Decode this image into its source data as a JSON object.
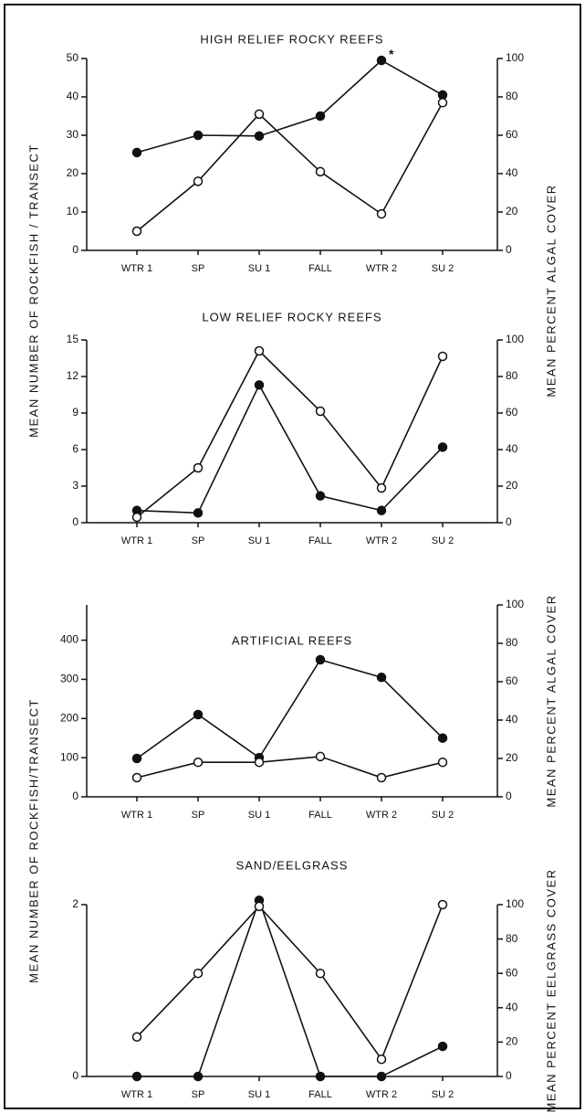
{
  "chart_data": [
    {
      "type": "line",
      "title": "HIGH RELIEF ROCKY REEFS",
      "categories": [
        "WTR 1",
        "SP",
        "SU 1",
        "FALL",
        "WTR 2",
        "SU 2"
      ],
      "ylim": [
        0,
        50
      ],
      "yticks": [
        0,
        10,
        20,
        30,
        40,
        50
      ],
      "y2lim": [
        0,
        100
      ],
      "y2ticks": [
        0,
        20,
        40,
        60,
        80,
        100
      ],
      "ylabel": "MEAN NUMBER OF ROCKFISH / TRANSECT",
      "y2label": "MEAN PERCENT ALGAL COVER",
      "series": [
        {
          "color": "#111111",
          "marker": "filled",
          "values": [
            25.5,
            30,
            29.8,
            35,
            49.5,
            40.5
          ]
        },
        {
          "color": "#111111",
          "marker": "open",
          "axis": "y2",
          "values": [
            10,
            36,
            71,
            41,
            19,
            77
          ]
        }
      ],
      "annotations": [
        {
          "text": "*",
          "series": 0,
          "index": 4
        }
      ]
    },
    {
      "type": "line",
      "title": "LOW RELIEF ROCKY REEFS",
      "categories": [
        "WTR 1",
        "SP",
        "SU 1",
        "FALL",
        "WTR 2",
        "SU 2"
      ],
      "ylim": [
        0,
        15
      ],
      "yticks": [
        0,
        3,
        6,
        9,
        12,
        15
      ],
      "y2lim": [
        0,
        100
      ],
      "y2ticks": [
        0,
        20,
        40,
        60,
        80,
        100
      ],
      "series": [
        {
          "color": "#111111",
          "marker": "filled",
          "values": [
            1.0,
            0.8,
            11.3,
            2.2,
            1.0,
            6.2
          ]
        },
        {
          "color": "#111111",
          "marker": "open",
          "axis": "y2",
          "values": [
            3,
            30,
            94,
            61,
            19,
            91
          ]
        }
      ]
    },
    {
      "type": "line",
      "title": "ARTIFICIAL REEFS",
      "categories": [
        "WTR 1",
        "SP",
        "SU 1",
        "FALL",
        "WTR 2",
        "SU 2"
      ],
      "ylim": [
        0,
        490
      ],
      "yticks": [
        0,
        100,
        200,
        300,
        400
      ],
      "y2lim": [
        0,
        100
      ],
      "y2ticks": [
        0,
        20,
        40,
        60,
        80,
        100
      ],
      "ylabel": "MEAN NUMBER OF ROCKFISH/TRANSECT",
      "y2label": "MEAN PERCENT ALGAL COVER",
      "series": [
        {
          "color": "#111111",
          "marker": "filled",
          "values": [
            98,
            210,
            100,
            350,
            305,
            150
          ]
        },
        {
          "color": "#111111",
          "marker": "open",
          "axis": "y2",
          "values": [
            10,
            18,
            18,
            21,
            10,
            18
          ]
        }
      ]
    },
    {
      "type": "line",
      "title": "SAND/EELGRASS",
      "categories": [
        "WTR 1",
        "SP",
        "SU 1",
        "FALL",
        "WTR 2",
        "SU 2"
      ],
      "ylim": [
        0,
        2
      ],
      "yticks": [
        0,
        2
      ],
      "y2lim": [
        0,
        100
      ],
      "y2ticks": [
        0,
        20,
        40,
        60,
        80,
        100
      ],
      "y2label": "MEAN PERCENT EELGRASS COVER",
      "series": [
        {
          "color": "#111111",
          "marker": "filled",
          "values": [
            0,
            0,
            2.05,
            0,
            0,
            0.35
          ]
        },
        {
          "color": "#111111",
          "marker": "open",
          "axis": "y2",
          "values": [
            23,
            60,
            99,
            60,
            10,
            100
          ]
        }
      ]
    }
  ]
}
